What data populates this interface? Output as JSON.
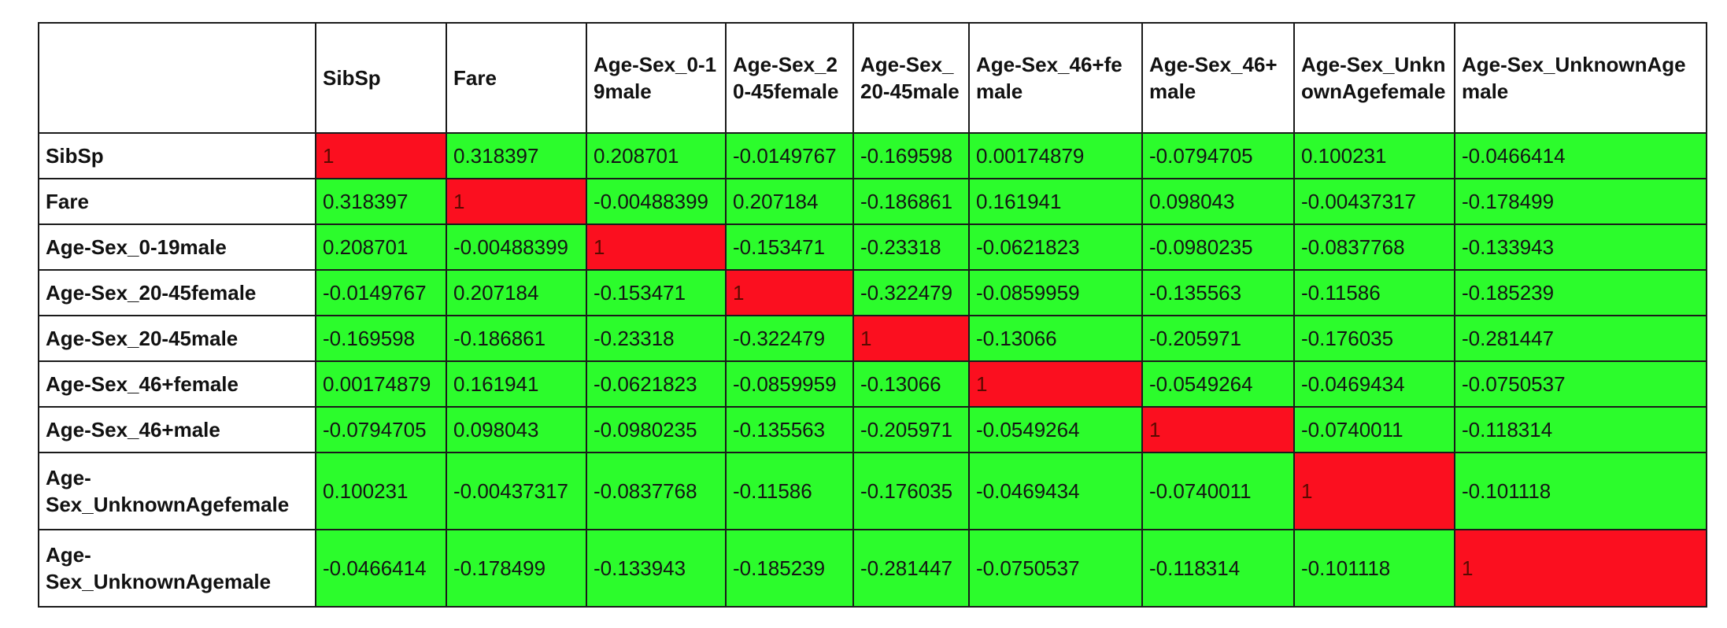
{
  "chart_data": {
    "type": "table",
    "title": "",
    "color_scale": {
      "diagonal_color": "#fb0f1f",
      "off_diagonal_color": "#2cfc2c"
    },
    "columns": [
      "SibSp",
      "Fare",
      "Age-Sex_0-19male",
      "Age-Sex_20-45female",
      "Age-Sex_20-45male",
      "Age-Sex_46+female",
      "Age-Sex_46+male",
      "Age-Sex_UnknownAgefemale",
      "Age-Sex_UnknownAgemale"
    ],
    "rows": [
      "SibSp",
      "Fare",
      "Age-Sex_0-19male",
      "Age-Sex_20-45female",
      "Age-Sex_20-45male",
      "Age-Sex_46+female",
      "Age-Sex_46+male",
      "Age-Sex_UnknownAgefemale",
      "Age-Sex_UnknownAgemale"
    ],
    "values": [
      [
        "1",
        "0.318397",
        "0.208701",
        "-0.0149767",
        "-0.169598",
        "0.00174879",
        "-0.0794705",
        "0.100231",
        "-0.0466414"
      ],
      [
        "0.318397",
        "1",
        "-0.00488399",
        "0.207184",
        "-0.186861",
        "0.161941",
        "0.098043",
        "-0.00437317",
        "-0.178499"
      ],
      [
        "0.208701",
        "-0.00488399",
        "1",
        "-0.153471",
        "-0.23318",
        "-0.0621823",
        "-0.0980235",
        "-0.0837768",
        "-0.133943"
      ],
      [
        "-0.0149767",
        "0.207184",
        "-0.153471",
        "1",
        "-0.322479",
        "-0.0859959",
        "-0.135563",
        "-0.11586",
        "-0.185239"
      ],
      [
        "-0.169598",
        "-0.186861",
        "-0.23318",
        "-0.322479",
        "1",
        "-0.13066",
        "-0.205971",
        "-0.176035",
        "-0.281447"
      ],
      [
        "0.00174879",
        "0.161941",
        "-0.0621823",
        "-0.0859959",
        "-0.13066",
        "1",
        "-0.0549264",
        "-0.0469434",
        "-0.0750537"
      ],
      [
        "-0.0794705",
        "0.098043",
        "-0.0980235",
        "-0.135563",
        "-0.205971",
        "-0.0549264",
        "1",
        "-0.0740011",
        "-0.118314"
      ],
      [
        "0.100231",
        "-0.00437317",
        "-0.0837768",
        "-0.11586",
        "-0.176035",
        "-0.0469434",
        "-0.0740011",
        "1",
        "-0.101118"
      ],
      [
        "-0.0466414",
        "-0.178499",
        "-0.133943",
        "-0.185239",
        "-0.281447",
        "-0.0750537",
        "-0.118314",
        "-0.101118",
        "1"
      ]
    ]
  }
}
